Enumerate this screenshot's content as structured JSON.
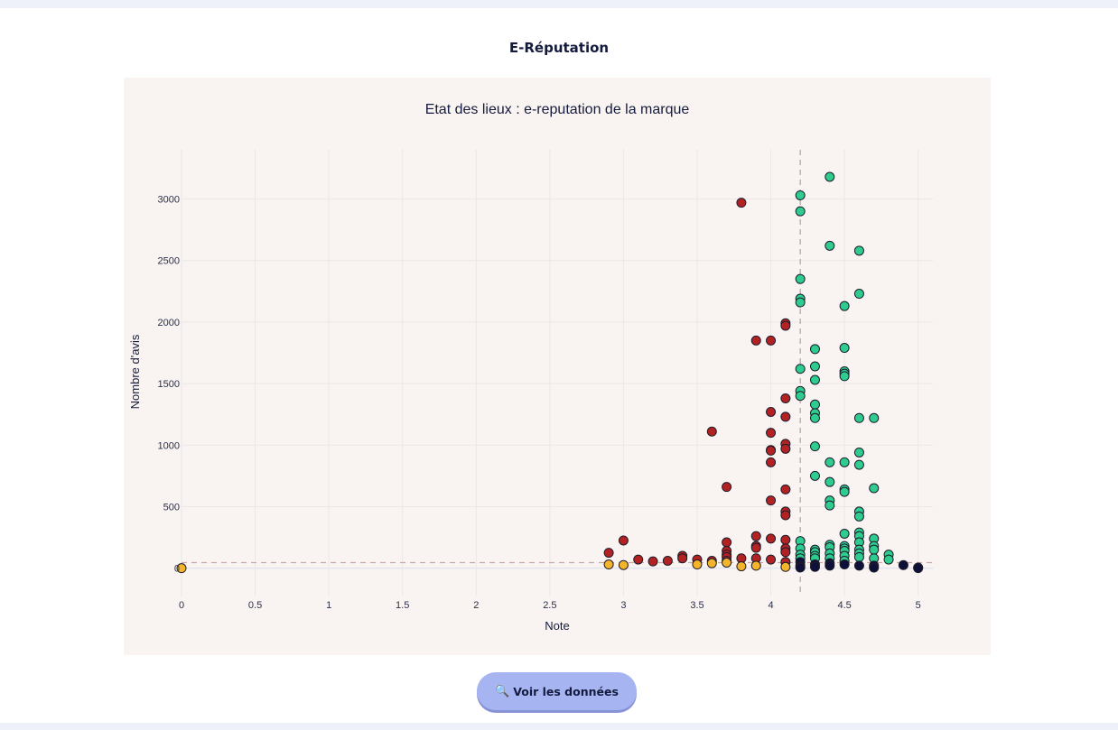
{
  "page": {
    "section_title": "E-Réputation"
  },
  "actions": {
    "view_data_label": "Voir les données",
    "view_data_icon": "magnifier-icon"
  },
  "colors": {
    "green": "#2ecc8f",
    "red": "#b22222",
    "orange": "#f5b52a",
    "navy": "#0e1038",
    "panel_bg": "#f9f4f1"
  },
  "chart_data": {
    "type": "scatter",
    "title": "Etat des lieux : e-reputation de la marque",
    "xlabel": "Note",
    "ylabel": "Nombre d'avis",
    "xlim": [
      0,
      5.1
    ],
    "ylim": [
      -230,
      3400
    ],
    "x_ticks": [
      0,
      0.5,
      1,
      1.5,
      2,
      2.5,
      3,
      3.5,
      4,
      4.5,
      5
    ],
    "x_tick_labels": [
      "0",
      "0.5",
      "1",
      "1.5",
      "2",
      "2.5",
      "3",
      "3.5",
      "4",
      "4.5",
      "5"
    ],
    "y_ticks": [
      0,
      500,
      1000,
      1500,
      2000,
      2500,
      3000
    ],
    "y_tick_labels": [
      "0",
      "500",
      "1000",
      "1500",
      "2000",
      "2500",
      "3000"
    ],
    "grid": true,
    "reference_lines": {
      "x": 4.2,
      "y": 45
    },
    "series": [
      {
        "color": "#2ecc8f",
        "points": [
          [
            4.4,
            3180
          ],
          [
            4.2,
            3030
          ],
          [
            4.2,
            2900
          ],
          [
            4.4,
            2620
          ],
          [
            4.6,
            2580
          ],
          [
            4.2,
            2350
          ],
          [
            4.6,
            2230
          ],
          [
            4.2,
            2190
          ],
          [
            4.2,
            2160
          ],
          [
            4.5,
            2130
          ],
          [
            4.3,
            1780
          ],
          [
            4.5,
            1790
          ],
          [
            4.3,
            1640
          ],
          [
            4.2,
            1620
          ],
          [
            4.5,
            1600
          ],
          [
            4.5,
            1580
          ],
          [
            4.5,
            1560
          ],
          [
            4.3,
            1530
          ],
          [
            4.2,
            1440
          ],
          [
            4.2,
            1400
          ],
          [
            4.3,
            1330
          ],
          [
            4.3,
            1260
          ],
          [
            4.3,
            1220
          ],
          [
            4.6,
            1220
          ],
          [
            4.7,
            1220
          ],
          [
            4.3,
            990
          ],
          [
            4.6,
            940
          ],
          [
            4.4,
            860
          ],
          [
            4.5,
            860
          ],
          [
            4.6,
            840
          ],
          [
            4.3,
            750
          ],
          [
            4.4,
            700
          ],
          [
            4.7,
            650
          ],
          [
            4.5,
            640
          ],
          [
            4.5,
            620
          ],
          [
            4.4,
            550
          ],
          [
            4.4,
            510
          ],
          [
            4.6,
            460
          ],
          [
            4.6,
            420
          ],
          [
            4.6,
            290
          ],
          [
            4.5,
            280
          ],
          [
            4.6,
            260
          ],
          [
            4.7,
            240
          ],
          [
            4.2,
            220
          ],
          [
            4.6,
            210
          ],
          [
            4.4,
            190
          ],
          [
            4.5,
            180
          ],
          [
            4.7,
            180
          ],
          [
            4.4,
            170
          ],
          [
            4.5,
            160
          ],
          [
            4.2,
            160
          ],
          [
            4.3,
            150
          ],
          [
            4.6,
            150
          ],
          [
            4.7,
            150
          ],
          [
            4.5,
            140
          ],
          [
            4.3,
            130
          ],
          [
            4.4,
            120
          ],
          [
            4.6,
            120
          ],
          [
            4.2,
            110
          ],
          [
            4.8,
            110
          ],
          [
            4.3,
            100
          ],
          [
            4.5,
            100
          ],
          [
            4.6,
            90
          ],
          [
            4.2,
            80
          ],
          [
            4.3,
            80
          ],
          [
            4.4,
            80
          ],
          [
            4.7,
            80
          ],
          [
            4.8,
            70
          ],
          [
            4.5,
            60
          ]
        ]
      },
      {
        "color": "#b22222",
        "points": [
          [
            3.8,
            2970
          ],
          [
            4.1,
            1990
          ],
          [
            4.1,
            1970
          ],
          [
            3.9,
            1850
          ],
          [
            4.0,
            1850
          ],
          [
            4.1,
            1380
          ],
          [
            4.0,
            1270
          ],
          [
            4.1,
            1230
          ],
          [
            3.6,
            1110
          ],
          [
            4.0,
            1100
          ],
          [
            4.1,
            1010
          ],
          [
            4.0,
            960
          ],
          [
            4.0,
            955
          ],
          [
            4.1,
            970
          ],
          [
            4.0,
            860
          ],
          [
            3.7,
            660
          ],
          [
            4.1,
            640
          ],
          [
            4.0,
            550
          ],
          [
            4.1,
            460
          ],
          [
            4.1,
            430
          ],
          [
            3.9,
            260
          ],
          [
            4.0,
            240
          ],
          [
            3.0,
            225
          ],
          [
            4.1,
            230
          ],
          [
            3.7,
            210
          ],
          [
            3.9,
            180
          ],
          [
            3.9,
            165
          ],
          [
            4.1,
            160
          ],
          [
            3.7,
            140
          ],
          [
            4.1,
            130
          ],
          [
            2.9,
            125
          ],
          [
            3.7,
            110
          ],
          [
            3.4,
            100
          ],
          [
            3.7,
            90
          ],
          [
            3.4,
            80
          ],
          [
            3.8,
            80
          ],
          [
            3.9,
            80
          ],
          [
            3.1,
            70
          ],
          [
            3.5,
            70
          ],
          [
            4.0,
            70
          ],
          [
            3.6,
            60
          ],
          [
            3.2,
            55
          ],
          [
            3.3,
            60
          ],
          [
            3.7,
            60
          ],
          [
            4.1,
            50
          ]
        ]
      },
      {
        "color": "#f5b52a",
        "points": [
          [
            0,
            0
          ],
          [
            2.9,
            30
          ],
          [
            3.0,
            25
          ],
          [
            3.5,
            30
          ],
          [
            3.6,
            40
          ],
          [
            3.7,
            45
          ],
          [
            3.8,
            15
          ],
          [
            3.9,
            20
          ],
          [
            4.1,
            10
          ]
        ]
      },
      {
        "color": "#0e1038",
        "points": [
          [
            4.2,
            50
          ],
          [
            4.2,
            20
          ],
          [
            4.2,
            5
          ],
          [
            4.3,
            30
          ],
          [
            4.3,
            10
          ],
          [
            4.4,
            40
          ],
          [
            4.4,
            20
          ],
          [
            4.5,
            30
          ],
          [
            4.6,
            20
          ],
          [
            4.7,
            20
          ],
          [
            4.7,
            5
          ],
          [
            4.9,
            25
          ],
          [
            5.0,
            5
          ],
          [
            5.0,
            0
          ]
        ]
      }
    ]
  }
}
